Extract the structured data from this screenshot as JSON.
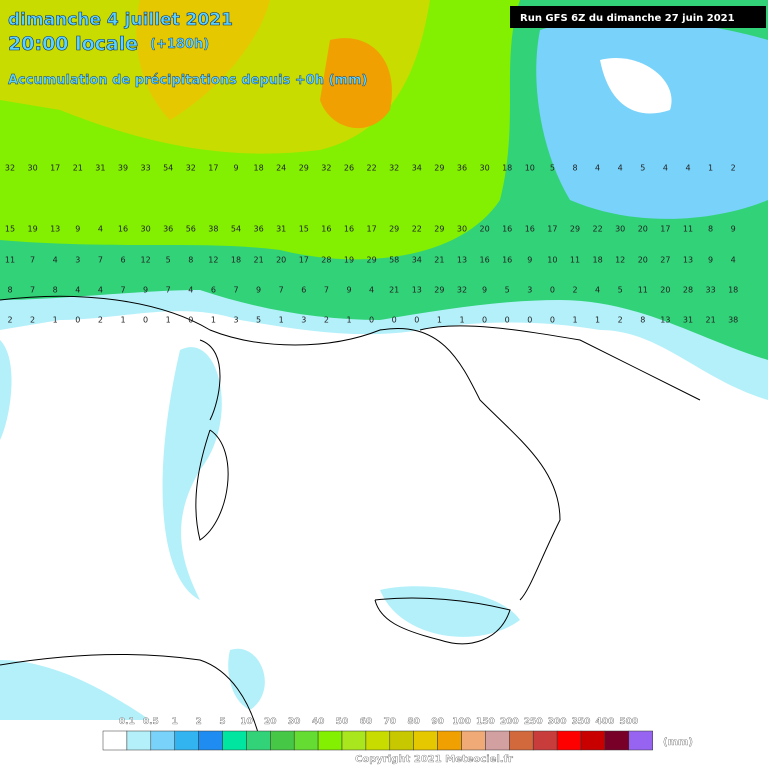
{
  "header": {
    "date": "dimanche 4 juillet 2021",
    "time": "20:00 locale",
    "lead": "(+180h)",
    "subtitle": "Accumulation de précipitations depuis +0h (mm)",
    "run": "Run GFS 6Z du dimanche 27 juin 2021"
  },
  "grid": {
    "rows": [
      [
        32,
        30,
        17,
        21,
        31,
        39,
        33,
        54,
        32,
        17,
        9,
        18,
        24,
        29,
        32,
        26,
        22,
        32,
        34,
        29,
        36,
        30,
        18,
        10,
        5,
        8,
        4,
        4,
        5,
        4,
        4,
        1,
        2
      ],
      [
        15,
        19,
        13,
        9,
        4,
        16,
        30,
        36,
        56,
        38,
        54,
        36,
        31,
        15,
        16,
        16,
        17,
        29,
        22,
        29,
        30,
        20,
        16,
        16,
        17,
        29,
        22,
        30,
        20,
        17,
        11,
        8,
        9
      ],
      [
        11,
        7,
        4,
        3,
        7,
        6,
        12,
        5,
        8,
        12,
        18,
        21,
        20,
        17,
        28,
        19,
        29,
        58,
        34,
        21,
        13,
        16,
        16,
        9,
        10,
        11,
        18,
        12,
        20,
        27,
        13,
        9,
        4
      ],
      [
        8,
        7,
        8,
        4,
        4,
        7,
        9,
        7,
        4,
        6,
        7,
        9,
        7,
        6,
        7,
        9,
        4,
        21,
        13,
        29,
        32,
        9,
        5,
        3,
        0,
        2,
        4,
        5,
        11,
        20,
        28,
        33,
        18
      ],
      [
        2,
        2,
        1,
        0,
        2,
        1,
        0,
        1,
        0,
        1,
        3,
        5,
        1,
        3,
        2,
        1,
        0,
        0,
        0,
        1,
        1,
        0,
        0,
        0,
        0,
        1,
        1,
        2,
        8,
        13,
        31,
        21,
        38
      ]
    ]
  },
  "legend": {
    "labels": [
      "0.1",
      "0.5",
      "1",
      "2",
      "5",
      "10",
      "20",
      "30",
      "40",
      "50",
      "60",
      "70",
      "80",
      "90",
      "100",
      "150",
      "200",
      "250",
      "300",
      "350",
      "400",
      "500"
    ],
    "colors": [
      "#ffffff",
      "#b4f0fa",
      "#78d2fa",
      "#32b4f0",
      "#1e8cf0",
      "#00e6a0",
      "#32d278",
      "#46c846",
      "#64dc32",
      "#82f000",
      "#aae61e",
      "#c8dc00",
      "#c8c800",
      "#e6c800",
      "#f0a000",
      "#f0aa78",
      "#d2a0a0",
      "#d2693c",
      "#c83c3c",
      "#ff0000",
      "#c80000",
      "#780028",
      "#9664f0"
    ],
    "unit": "(mm)"
  },
  "footer": {
    "copyright": "Copyright 2021 Meteociel.fr"
  }
}
